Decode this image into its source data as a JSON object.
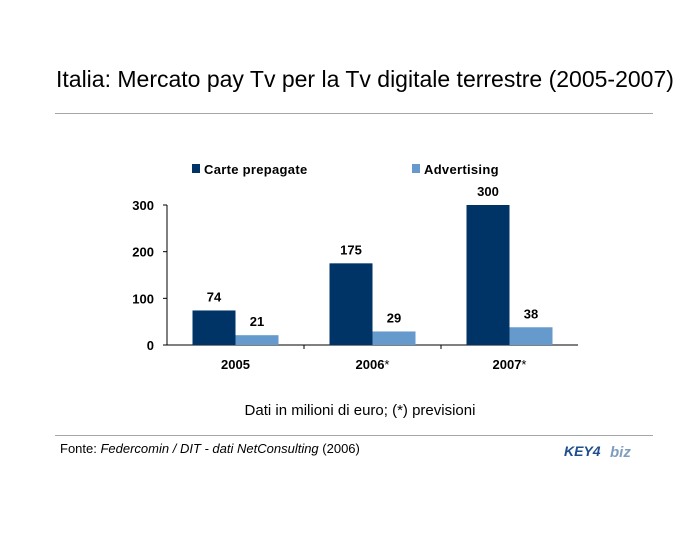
{
  "slide": {
    "title": "Italia: Mercato pay Tv per la Tv digitale terrestre (2005-2007)",
    "note": "Dati in milioni di euro; (*) previsioni",
    "source": {
      "prefix": "Fonte: ",
      "italic": "Federcomin / DIT - dati NetConsulting",
      "suffix": " (2006)"
    },
    "logo": {
      "left": "KEY4",
      "right": "biz"
    }
  },
  "colors": {
    "carte": "#003366",
    "advertising": "#6699cc",
    "logo_blue": "#1f4e8c",
    "logo_gray": "#7f9dbf"
  },
  "chart_data": {
    "type": "bar",
    "categories": [
      "2005",
      "2006",
      "2007"
    ],
    "category_suffix": [
      "",
      "*",
      "*"
    ],
    "series": [
      {
        "name": "Carte prepagate",
        "values": [
          74,
          175,
          300
        ]
      },
      {
        "name": "Advertising",
        "values": [
          21,
          29,
          38
        ]
      }
    ],
    "ylim": [
      0,
      300
    ],
    "yticks": [
      0,
      100,
      200,
      300
    ],
    "grid": false,
    "legend": "top",
    "data_labels": true,
    "title": "",
    "xlabel": "",
    "ylabel": ""
  }
}
